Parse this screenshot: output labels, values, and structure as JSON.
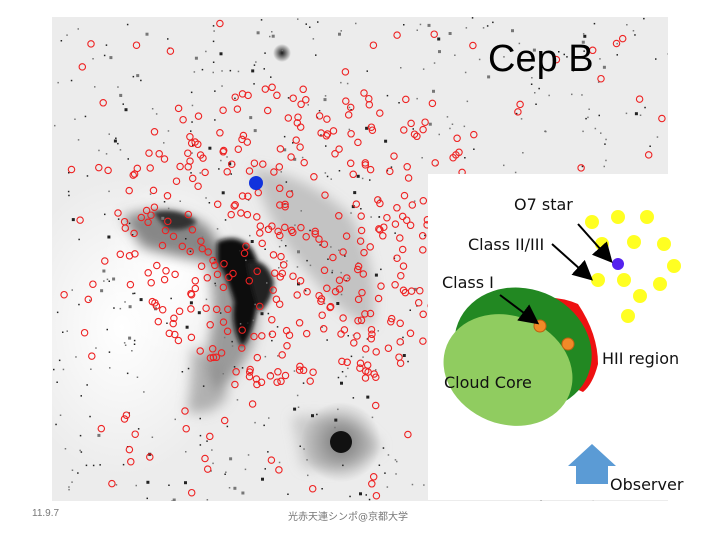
{
  "slide": {
    "title": "Cep B",
    "footer_date": "11.9.7",
    "footer_center": "光赤天連シンポ@京都大学"
  },
  "diagram": {
    "labels": {
      "o7_star": "O7 star",
      "class_2_3": "Class II/III",
      "class_1": "Class I",
      "hii_region": "HII region",
      "cloud_core": "Cloud Core",
      "observer": "Observer"
    },
    "colors": {
      "class_2_3_star": "#ffff22",
      "o7_star": "#5522ee",
      "class_1_star": "#f08a28",
      "hii_region": "#ee1111",
      "cloud_rim": "#228822",
      "cloud_core": "#90cc60",
      "observer_arrow": "#5b9bd5"
    }
  },
  "image": {
    "colors": {
      "background": "#ececec",
      "nebula": "#1a1a1a",
      "source_marker": "#ee2222",
      "highlight_star": "#1133dd"
    }
  }
}
